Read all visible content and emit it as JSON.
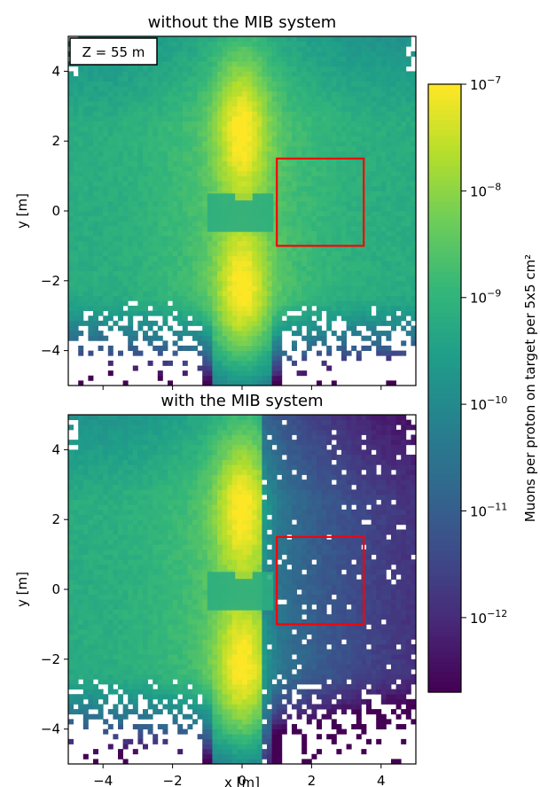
{
  "chart_data": {
    "type": "heatmap",
    "zscale": "log",
    "colormap": "viridis",
    "colorbar": {
      "label": "Muons per proton on target per 5x5 cm²",
      "ticks": [
        {
          "value": 1e-07,
          "base": "10",
          "exp": "−7"
        },
        {
          "value": 1e-08,
          "base": "10",
          "exp": "−8"
        },
        {
          "value": 1e-09,
          "base": "10",
          "exp": "−9"
        },
        {
          "value": 1e-10,
          "base": "10",
          "exp": "−10"
        },
        {
          "value": 1e-11,
          "base": "10",
          "exp": "−11"
        },
        {
          "value": 1e-12,
          "base": "10",
          "exp": "−12"
        }
      ],
      "zlim": [
        2e-13,
        1e-07
      ]
    },
    "panels": [
      {
        "title": "without the MIB system",
        "annotation": "Z = 55 m",
        "ylabel": "y [m]",
        "xlabel": "",
        "xlim": [
          -5,
          5
        ],
        "ylim": [
          -5,
          5
        ],
        "show_x_ticklabels": false,
        "mib": false,
        "region": {
          "x0": 1,
          "x1": 3.5,
          "y0": -1,
          "y1": 1.5,
          "color": "#ff0000"
        }
      },
      {
        "title": "with the MIB system",
        "annotation": "",
        "ylabel": "y [m]",
        "xlabel": "x [m]",
        "xlim": [
          -5,
          5
        ],
        "ylim": [
          -5,
          5
        ],
        "show_x_ticklabels": true,
        "mib": true,
        "region": {
          "x0": 1,
          "x1": 3.5,
          "y0": -1,
          "y1": 1.5,
          "color": "#ff0000"
        }
      }
    ],
    "xticks": [
      -4,
      -2,
      0,
      2,
      4
    ],
    "xtick_labels": [
      "−4",
      "−2",
      "0",
      "2",
      "4"
    ],
    "yticks": [
      4,
      2,
      0,
      -2,
      -4
    ],
    "ytick_labels": [
      "4",
      "2",
      "0",
      "−2",
      "−4"
    ]
  }
}
